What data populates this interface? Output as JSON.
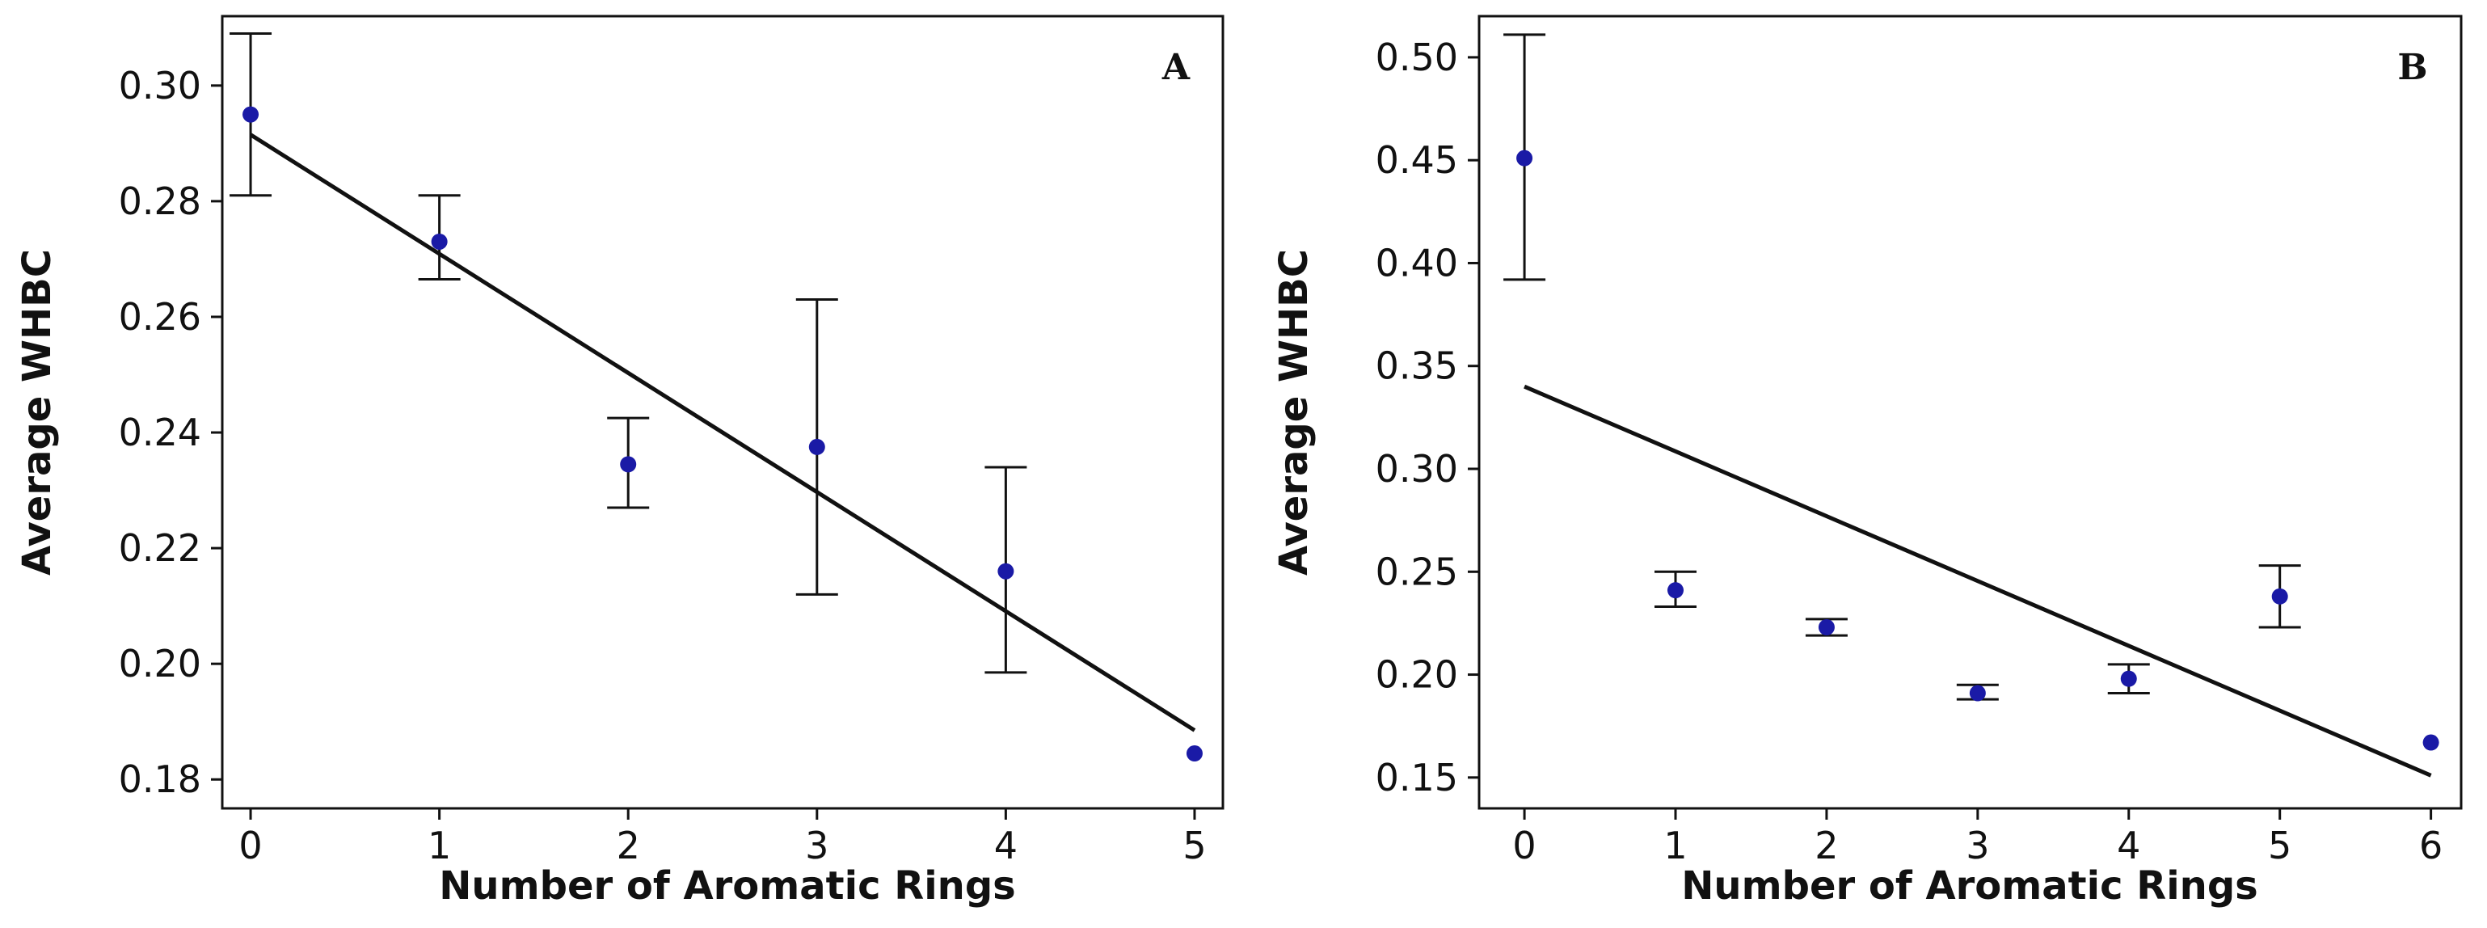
{
  "chart_data": [
    {
      "type": "scatter",
      "panel_label": "A",
      "title": "",
      "xlabel": "Number of Aromatic Rings",
      "ylabel": "Average WHBC",
      "xlim": [
        -0.15,
        5.15
      ],
      "ylim": [
        0.175,
        0.312
      ],
      "xticks": [
        0,
        1,
        2,
        3,
        4,
        5
      ],
      "yticks": [
        0.18,
        0.2,
        0.22,
        0.24,
        0.26,
        0.28,
        0.3
      ],
      "ytick_labels": [
        "0.18",
        "0.20",
        "0.22",
        "0.24",
        "0.26",
        "0.28",
        "0.30"
      ],
      "x": [
        0,
        1,
        2,
        3,
        4,
        5
      ],
      "y": [
        0.295,
        0.273,
        0.2345,
        0.2375,
        0.216,
        0.1845
      ],
      "err_low": [
        0.281,
        0.2665,
        0.227,
        0.212,
        0.1985,
        null
      ],
      "err_high": [
        0.309,
        0.281,
        0.2425,
        0.263,
        0.234,
        null
      ],
      "fit_line": {
        "x": [
          0,
          5
        ],
        "y": [
          0.2915,
          0.1885
        ]
      },
      "marker_color": "#1a1aa6",
      "line_color": "#111111"
    },
    {
      "type": "scatter",
      "panel_label": "B",
      "title": "",
      "xlabel": "Number of Aromatic Rings",
      "ylabel": "Average WHBC",
      "xlim": [
        -0.3,
        6.2
      ],
      "ylim": [
        0.135,
        0.52
      ],
      "xticks": [
        0,
        1,
        2,
        3,
        4,
        5,
        6
      ],
      "yticks": [
        0.15,
        0.2,
        0.25,
        0.3,
        0.35,
        0.4,
        0.45,
        0.5
      ],
      "ytick_labels": [
        "0.15",
        "0.20",
        "0.25",
        "0.30",
        "0.35",
        "0.40",
        "0.45",
        "0.50"
      ],
      "x": [
        0,
        1,
        2,
        3,
        4,
        5,
        6
      ],
      "y": [
        0.451,
        0.241,
        0.223,
        0.191,
        0.198,
        0.238,
        0.167
      ],
      "err_low": [
        0.392,
        0.233,
        0.219,
        0.188,
        0.191,
        0.223,
        null
      ],
      "err_high": [
        0.511,
        0.25,
        0.227,
        0.195,
        0.205,
        0.253,
        null
      ],
      "fit_line": {
        "x": [
          0,
          6
        ],
        "y": [
          0.34,
          0.151
        ]
      },
      "marker_color": "#1a1aa6",
      "line_color": "#111111"
    }
  ]
}
